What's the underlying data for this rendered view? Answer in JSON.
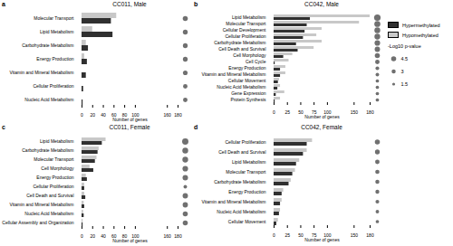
{
  "chart_data": {
    "type": "bar",
    "orientation": "horizontal",
    "xlabel": "Number of genes",
    "legend": "right",
    "size_legend": {
      "title": "-Log10 p-value",
      "color": "#707070",
      "values": [
        4.5,
        3,
        1.5
      ]
    },
    "panels": [
      {
        "panel_label": "a",
        "title": "CC011, Male",
        "categories": [
          "Nucleic Acid Metabolism",
          "Cellular Proliferation",
          "Vitamin and Mineral Metabolism",
          "Energy Production",
          "Carbohydrate Metabolism",
          "Lipid Metabolism",
          "Molecular Transport"
        ],
        "series": [
          {
            "name": "Hypermethylated",
            "color": "#303030",
            "values": [
              2,
              3,
              8,
              10,
              12,
              58,
              55
            ]
          },
          {
            "name": "Hypomethylated",
            "color": "#c8c8c8",
            "values": [
              0,
              0,
              0,
              5,
              8,
              20,
              65
            ]
          }
        ],
        "sizes": [
          3.5,
          3.5,
          3.8,
          4.0,
          4.0,
          4.2,
          4.5
        ],
        "xlim": [
          0,
          180
        ],
        "xticks": [
          0,
          20,
          40,
          60,
          80,
          100,
          160,
          180
        ]
      },
      {
        "panel_label": "b",
        "title": "CC042, Male",
        "categories": [
          "Protein Synthesis",
          "Gene Expression",
          "Nucleic Acid Metabolism",
          "Cellular Movement",
          "Vitamin and Mineral Metabolism",
          "Energy Production",
          "Cell Cycle",
          "Cell Morphology",
          "Cell Death and Survival",
          "Carbohydrate Metabolism",
          "Cellular Proliferation",
          "Cellular Development",
          "Molecular Transport",
          "Lipid Metabolism"
        ],
        "series": [
          {
            "name": "Hypermethylated",
            "color": "#303030",
            "values": [
              2,
              4,
              7,
              8,
              12,
              12,
              2,
              18,
              45,
              42,
              55,
              58,
              62,
              68
            ]
          },
          {
            "name": "Hypomethylated",
            "color": "#c8c8c8",
            "values": [
              12,
              20,
              12,
              10,
              22,
              22,
              28,
              35,
              75,
              90,
              80,
              90,
              160,
              180
            ]
          }
        ],
        "sizes": [
          2.0,
          2.0,
          2.0,
          2.0,
          2.2,
          2.5,
          3.5,
          4.5,
          5.0,
          5.5,
          5.8,
          6.0,
          6.5,
          7.5
        ],
        "xlim": [
          0,
          180
        ],
        "xticks": [
          0,
          25,
          50,
          75,
          100,
          150,
          180
        ]
      },
      {
        "panel_label": "c",
        "title": "CC011, Female",
        "categories": [
          "Cellular Assembly and Organization",
          "Nucleic Acid Metabolism",
          "Vitamin and Mineral Metabolism",
          "Cell Death and Survival",
          "Cellular Proliferation",
          "Energy Production",
          "Cell Morphology",
          "Molecular Transport",
          "Carbohydrate Metabolism",
          "Lipid Metabolism"
        ],
        "series": [
          {
            "name": "Hypermethylated",
            "color": "#303030",
            "values": [
              2,
              4,
              5,
              7,
              5,
              10,
              22,
              25,
              30,
              38
            ]
          },
          {
            "name": "Hypomethylated",
            "color": "#c8c8c8",
            "values": [
              2,
              3,
              4,
              5,
              5,
              8,
              15,
              28,
              32,
              45
            ]
          }
        ],
        "sizes": [
          4.5,
          4.5,
          4.8,
          5.0,
          2.2,
          5.2,
          5.5,
          5.8,
          6.0,
          7.0
        ],
        "xlim": [
          0,
          180
        ],
        "xticks": [
          0,
          20,
          40,
          60,
          80,
          100,
          160,
          180
        ]
      },
      {
        "panel_label": "d",
        "title": "CC042, Female",
        "categories": [
          "Cellular Movement",
          "Nucleic Acid Metabolism",
          "Vitamin and Mineral Metabolism",
          "Energy Production",
          "Carbohydrate Metabolism",
          "Molecular Transport",
          "Lipid Metabolism",
          "Cell Death and Survival",
          "Cellular Proliferation"
        ],
        "series": [
          {
            "name": "Hypermethylated",
            "color": "#303030",
            "values": [
              5,
              10,
              12,
              15,
              28,
              35,
              42,
              55,
              62
            ]
          },
          {
            "name": "Hypomethylated",
            "color": "#c8c8c8",
            "values": [
              8,
              12,
              15,
              18,
              32,
              40,
              48,
              62,
              72
            ]
          }
        ],
        "sizes": [
          2.0,
          2.2,
          2.5,
          2.8,
          3.0,
          3.2,
          3.5,
          4.0,
          4.5
        ],
        "xlim": [
          0,
          180
        ],
        "xticks": [
          0,
          25,
          50,
          75,
          100,
          150,
          180
        ]
      }
    ]
  }
}
